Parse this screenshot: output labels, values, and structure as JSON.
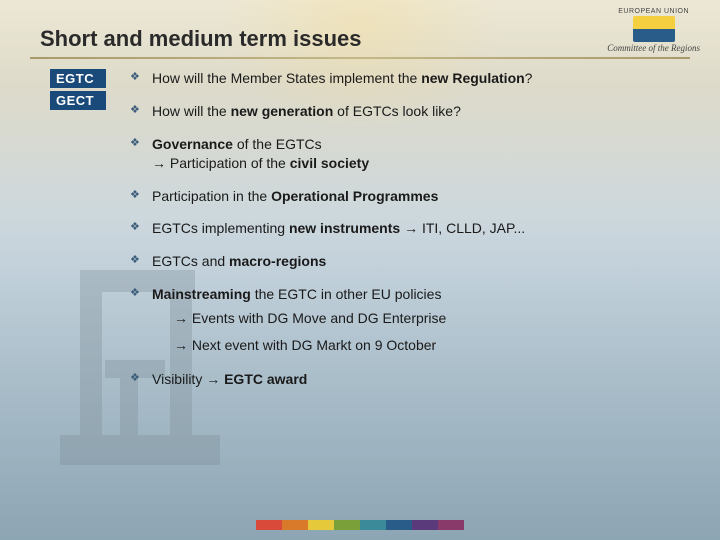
{
  "header": {
    "title": "Short and medium term issues",
    "eu_label": "EUROPEAN UNION",
    "cor_label": "Committee of the Regions"
  },
  "left_badges": [
    "EGTC",
    "GECT"
  ],
  "bullets": [
    {
      "html": "How will the Member States implement the <b>new Regulation</b>?"
    },
    {
      "html": "How will the <b>new generation</b> of EGTCs look like?"
    },
    {
      "html": "<b>Governance</b> of the EGTCs<br><span class='arrow'>→</span> Participation of the <b>civil society</b>"
    },
    {
      "html": "Participation in the <b>Operational Programmes</b>"
    },
    {
      "html": "EGTCs implementing <b>new instruments</b> <span class='arrow'>→</span> ITI, CLLD, JAP..."
    },
    {
      "html": "EGTCs and <b>macro-regions</b>"
    },
    {
      "html": "<b>Mainstreaming</b> the EGTC in other EU policies",
      "subs": [
        "<span class='arrow'>→</span> Events with DG Move and DG Enterprise",
        "<span class='arrow'>→</span> Next event with DG Markt on 9 October"
      ]
    },
    {
      "html": "Visibility <span class='arrow'>→</span> <b>EGTC award</b>"
    }
  ],
  "footer_colors": [
    "#d94a3a",
    "#d97a2a",
    "#e6c93a",
    "#7aa03a",
    "#3a8a9a",
    "#2a5c8a",
    "#5a3a7a",
    "#8a3a6a"
  ],
  "colors": {
    "badge_bg": "#1a4a7a",
    "bullet_marker": "#3a5c7a"
  }
}
